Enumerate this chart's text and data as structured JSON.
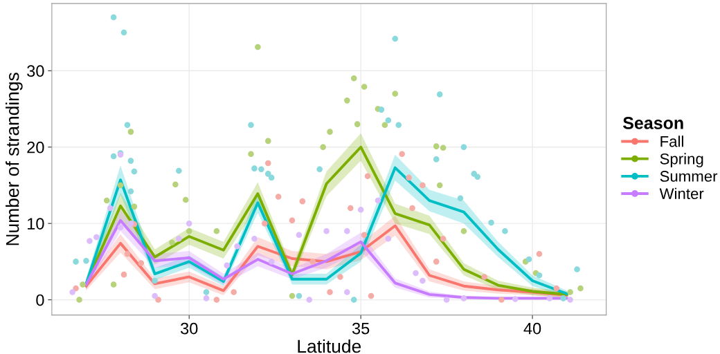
{
  "chart_data": {
    "type": "line",
    "xlabel": "Latitude",
    "ylabel": "Number of strandings",
    "legend_title": "Season",
    "legend": "right",
    "grid": true,
    "xlim": [
      26.0,
      42.15
    ],
    "ylim": [
      -2,
      38.8
    ],
    "xticks": [
      30,
      35,
      40
    ],
    "yticks": [
      0,
      10,
      20,
      30
    ],
    "series": [
      {
        "type": "scatter",
        "marker": "circle",
        "color": "#f5aca6",
        "x": [
          28.4,
          28.2,
          28.1,
          28.6,
          32.3,
          32.6,
          32.2,
          33.3,
          33.0,
          34.7,
          35.2,
          36.2,
          36.4,
          36.5,
          36.8,
          35.1,
          37.4,
          37.2,
          38.6,
          40.2,
          40.7,
          29.1,
          30.8,
          31.3,
          34.1,
          35.3,
          39.1,
          26.7,
          33.6,
          34.4
        ],
        "values": [
          9.9,
          6.0,
          3.3,
          4.8,
          17.9,
          13.5,
          10.0,
          12.9,
          10.4,
          12.0,
          16.2,
          19.1,
          16.0,
          12.0,
          15.0,
          8.5,
          8.0,
          5.0,
          3.0,
          6.0,
          1.5,
          0.0,
          0.0,
          1.0,
          1.0,
          0.5,
          0.0,
          1.5,
          5.0,
          3.0
        ]
      },
      {
        "type": "scatter",
        "marker": "circle",
        "color": "#b6d27a",
        "x": [
          28.3,
          28.0,
          27.6,
          28.4,
          29.6,
          29.9,
          30.0,
          30.8,
          32.0,
          32.3,
          31.8,
          34.6,
          34.8,
          34.9,
          35.1,
          35.5,
          35.7,
          34.1,
          33.9,
          36.0,
          37.2,
          37.3,
          37.4,
          38.0,
          40.1,
          39.8,
          26.9,
          41.1,
          41.4,
          29.5,
          33.0,
          27.8,
          26.8
        ],
        "values": [
          22.0,
          15.0,
          13.0,
          12.2,
          15.1,
          13.1,
          9.0,
          9.0,
          33.1,
          20.8,
          19.1,
          26.1,
          29.0,
          23.0,
          27.9,
          25.0,
          22.9,
          22.0,
          20.0,
          27.0,
          20.1,
          15.0,
          19.9,
          9.0,
          3.5,
          5.0,
          2.0,
          1.0,
          1.5,
          7.5,
          0.5,
          2.0,
          0
        ]
      },
      {
        "type": "scatter",
        "marker": "circle",
        "color": "#8ad9dc",
        "x": [
          27.8,
          28.1,
          28.2,
          28.3,
          27.8,
          28.0,
          28.4,
          28.3,
          29.7,
          31.8,
          31.9,
          32.1,
          32.3,
          32.4,
          33.8,
          35.8,
          36.0,
          35.6,
          36.1,
          37.3,
          37.2,
          38.0,
          38.3,
          38.4,
          37.9,
          38.8,
          39.2,
          39.9,
          40.2,
          41.3,
          26.7,
          27.0,
          29.0,
          30.5,
          33.2,
          34.8,
          40.9
        ],
        "values": [
          37,
          35,
          22.9,
          18.2,
          18.8,
          19.2,
          16.8,
          14.2,
          16.9,
          22.9,
          17.2,
          17.1,
          16.5,
          16.0,
          17.1,
          23.5,
          34.2,
          24.9,
          22.9,
          26.9,
          18.4,
          20.0,
          16.5,
          16.1,
          13.3,
          10.1,
          9.0,
          5.3,
          3.2,
          4.0,
          5.0,
          5.1,
          2.5,
          1.0,
          0.5,
          0,
          0.2
        ]
      },
      {
        "type": "scatter",
        "marker": "circle",
        "color": "#ddbcfb",
        "x": [
          27.1,
          27.3,
          27.7,
          28.0,
          28.3,
          28.0,
          29.7,
          30.0,
          31.1,
          31.4,
          31.9,
          32.4,
          33.2,
          34.0,
          34.6,
          35.0,
          35.5,
          35.8,
          36.6,
          36.8,
          37.5,
          38.0,
          39.5,
          40.5,
          41.1,
          26.6,
          29.0,
          30.5,
          33.5,
          34.6
        ],
        "values": [
          7.7,
          8.2,
          12.0,
          19.0,
          10.0,
          9.5,
          8.0,
          10.0,
          4.5,
          7.0,
          8.0,
          5.0,
          8.5,
          9.0,
          9.0,
          11.8,
          13.0,
          8.0,
          3.5,
          2.5,
          0.0,
          0.2,
          0.1,
          0.2,
          0.0,
          1.0,
          0.5,
          0.2,
          0,
          1.0
        ]
      },
      {
        "name": "Fall",
        "color": "#f8766d",
        "x": [
          27,
          28,
          29,
          30,
          31,
          32,
          33,
          34,
          35,
          36,
          37,
          38,
          39,
          40,
          41
        ],
        "values": [
          1.8,
          7.4,
          2.1,
          3.0,
          1.2,
          7.0,
          5.4,
          5.0,
          6.3,
          9.7,
          3.2,
          1.8,
          1.3,
          1.0,
          0.6
        ],
        "lower": [
          1.2,
          6.2,
          1.4,
          2.3,
          0.6,
          5.8,
          4.4,
          4.0,
          5.2,
          8.4,
          2.4,
          1.2,
          0.8,
          0.6,
          0.2
        ],
        "upper": [
          2.4,
          8.6,
          2.8,
          3.7,
          1.8,
          8.2,
          6.4,
          6.0,
          7.4,
          11.0,
          4.0,
          2.4,
          1.8,
          1.4,
          1.0
        ]
      },
      {
        "name": "Spring",
        "color": "#7cae00",
        "x": [
          27,
          28,
          29,
          30,
          31,
          32,
          33,
          34,
          35,
          36,
          37,
          38,
          39,
          40,
          41
        ],
        "values": [
          2.1,
          12.3,
          5.6,
          8.3,
          6.5,
          13.9,
          3.3,
          15.2,
          20.0,
          11.3,
          9.8,
          4.0,
          1.9,
          1.1,
          0.7
        ],
        "lower": [
          1.4,
          10.6,
          4.6,
          7.2,
          5.4,
          12.4,
          2.5,
          13.6,
          18.2,
          10.0,
          8.6,
          3.2,
          1.3,
          0.6,
          0.3
        ],
        "upper": [
          2.8,
          14.0,
          6.6,
          9.4,
          7.6,
          15.4,
          4.1,
          16.8,
          21.8,
          12.6,
          11.0,
          4.8,
          2.5,
          1.6,
          1.1
        ]
      },
      {
        "name": "Summer",
        "color": "#00bfc4",
        "x": [
          27,
          28,
          29,
          30,
          31,
          32,
          33,
          34,
          35,
          36,
          37,
          38,
          39,
          40,
          41
        ],
        "values": [
          2.1,
          15.7,
          3.4,
          5.0,
          2.4,
          12.7,
          2.7,
          2.7,
          6.1,
          17.3,
          13.0,
          11.5,
          6.6,
          2.5,
          0.8
        ],
        "lower": [
          1.4,
          13.8,
          2.6,
          4.2,
          1.8,
          11.4,
          2.0,
          2.0,
          5.0,
          15.6,
          11.6,
          10.0,
          5.6,
          1.8,
          0.4
        ],
        "upper": [
          2.8,
          17.6,
          4.2,
          5.8,
          3.0,
          14.0,
          3.4,
          3.4,
          7.2,
          19.0,
          14.4,
          13.0,
          7.6,
          3.2,
          1.2
        ]
      },
      {
        "name": "Winter",
        "color": "#c77cff",
        "x": [
          27,
          28,
          29,
          30,
          31,
          32,
          33,
          34,
          35,
          36,
          37,
          38,
          39,
          40,
          41
        ],
        "values": [
          2.0,
          10.4,
          5.1,
          5.5,
          2.7,
          5.3,
          3.4,
          5.1,
          7.6,
          2.2,
          0.7,
          0.3,
          0.2,
          0.2,
          0.2
        ],
        "lower": [
          1.4,
          9.0,
          4.2,
          4.6,
          2.0,
          4.4,
          2.7,
          4.2,
          6.4,
          1.6,
          0.3,
          0.1,
          0.0,
          0.0,
          0.0
        ],
        "upper": [
          2.6,
          11.8,
          6.0,
          6.4,
          3.4,
          6.2,
          4.1,
          6.0,
          8.8,
          2.8,
          1.1,
          0.5,
          0.4,
          0.4,
          0.4
        ]
      }
    ]
  }
}
